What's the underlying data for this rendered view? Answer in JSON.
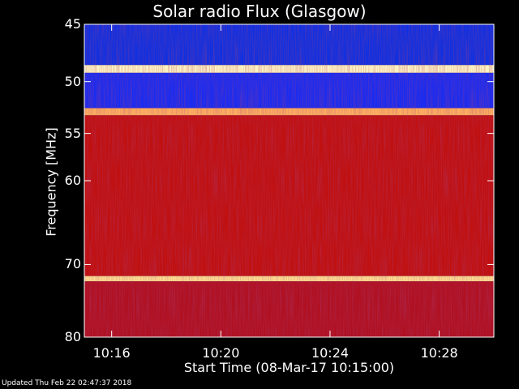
{
  "chart_data": {
    "type": "heatmap",
    "title": "Solar radio Flux (Glasgow)",
    "ylabel": "Frequency [MHz]",
    "xlabel": "Start Time (08-Mar-17 10:15:00)",
    "y_ticks": [
      {
        "label": "45",
        "value": 45
      },
      {
        "label": "50",
        "value": 50
      },
      {
        "label": "55",
        "value": 55
      },
      {
        "label": "60",
        "value": 60
      },
      {
        "label": "70",
        "value": 70
      },
      {
        "label": "80",
        "value": 80
      }
    ],
    "x_ticks": [
      {
        "label": "10:16",
        "value": 16
      },
      {
        "label": "10:20",
        "value": 20
      },
      {
        "label": "10:24",
        "value": 24
      },
      {
        "label": "10:28",
        "value": 28
      }
    ],
    "x_range_min": [
      15,
      30
    ],
    "y_range_mhz": [
      45,
      80
    ],
    "colormap": [
      "#000070",
      "#1010ff",
      "#c00000",
      "#ff3a10",
      "#ffd070",
      "#fffff0"
    ],
    "bands": [
      {
        "mhz": [
          45,
          48.5
        ],
        "color": "#1030e0"
      },
      {
        "mhz": [
          48.5,
          49.2
        ],
        "color": "#fff4c0"
      },
      {
        "mhz": [
          49.2,
          52.5
        ],
        "color": "#1a2cf0"
      },
      {
        "mhz": [
          52.5,
          53.2
        ],
        "color": "#ffb060"
      },
      {
        "mhz": [
          53.2,
          71.5
        ],
        "color": "#c01010"
      },
      {
        "mhz": [
          71.5,
          72.2
        ],
        "color": "#ffe090"
      },
      {
        "mhz": [
          72.2,
          80
        ],
        "color": "#b01020"
      }
    ]
  },
  "footer": "Updated Thu Feb 22 02:47:37 2018"
}
